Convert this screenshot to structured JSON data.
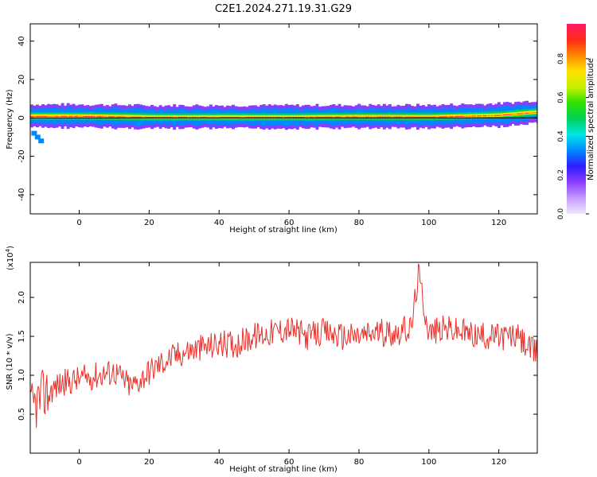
{
  "title": "C2E1.2024.271.19.31.G29",
  "chart_data": [
    {
      "type": "heatmap",
      "xlabel": "Height of straight line (km)",
      "ylabel": "Frequency (Hz)",
      "xlim": [
        -14,
        131
      ],
      "ylim": [
        -50,
        49
      ],
      "xticks": [
        0,
        20,
        40,
        60,
        80,
        100,
        120
      ],
      "yticks": [
        -40,
        -20,
        0,
        20,
        40
      ],
      "colorbar": {
        "label": "Normalized spectral amplitude",
        "range": [
          0,
          0.98
        ],
        "ticks": [
          0.0,
          0.2,
          0.4,
          0.6,
          0.8
        ],
        "colors": [
          "#f0e6ff",
          "#c59bff",
          "#8a3dff",
          "#2f1dff",
          "#0088ff",
          "#00e6e6",
          "#00d25a",
          "#2ee000",
          "#c8f000",
          "#ffe000",
          "#ff8800",
          "#ff2a1a",
          "#ff1a66"
        ]
      },
      "ridge": [
        {
          "x": -13,
          "y": 1.0
        },
        {
          "x": 0,
          "y": 1.0
        },
        {
          "x": 20,
          "y": 0.5
        },
        {
          "x": 40,
          "y": 0.5
        },
        {
          "x": 60,
          "y": 0.5
        },
        {
          "x": 80,
          "y": 0.7
        },
        {
          "x": 100,
          "y": 0.6
        },
        {
          "x": 120,
          "y": 1.5
        },
        {
          "x": 130,
          "y": 3.0
        }
      ],
      "secondary_feature": [
        {
          "x": -13,
          "y": -8
        },
        {
          "x": -12,
          "y": -10
        },
        {
          "x": -11,
          "y": -12
        }
      ]
    },
    {
      "type": "line",
      "xlabel": "Height of straight line (km)",
      "ylabel": "SNR (10 * v/v)",
      "y_multiplier": "(x10",
      "y_multiplier_exp": "4",
      "xlim": [
        -14,
        131
      ],
      "ylim": [
        0.0,
        2.45
      ],
      "xticks": [
        0,
        20,
        40,
        60,
        80,
        100,
        120
      ],
      "yticks": [
        0.5,
        1.0,
        1.5,
        2.0
      ],
      "color": "#e8302a",
      "x": [
        -14,
        -10,
        -5,
        0,
        5,
        10,
        15,
        20,
        25,
        30,
        35,
        40,
        45,
        50,
        55,
        60,
        65,
        70,
        75,
        80,
        85,
        90,
        95,
        97,
        100,
        105,
        110,
        115,
        120,
        125,
        130
      ],
      "y": [
        0.55,
        0.75,
        0.9,
        0.95,
        1.0,
        1.05,
        0.85,
        1.05,
        1.2,
        1.3,
        1.35,
        1.4,
        1.4,
        1.5,
        1.55,
        1.6,
        1.5,
        1.55,
        1.5,
        1.5,
        1.55,
        1.55,
        1.6,
        2.3,
        1.55,
        1.6,
        1.55,
        1.5,
        1.5,
        1.5,
        1.3
      ]
    }
  ]
}
